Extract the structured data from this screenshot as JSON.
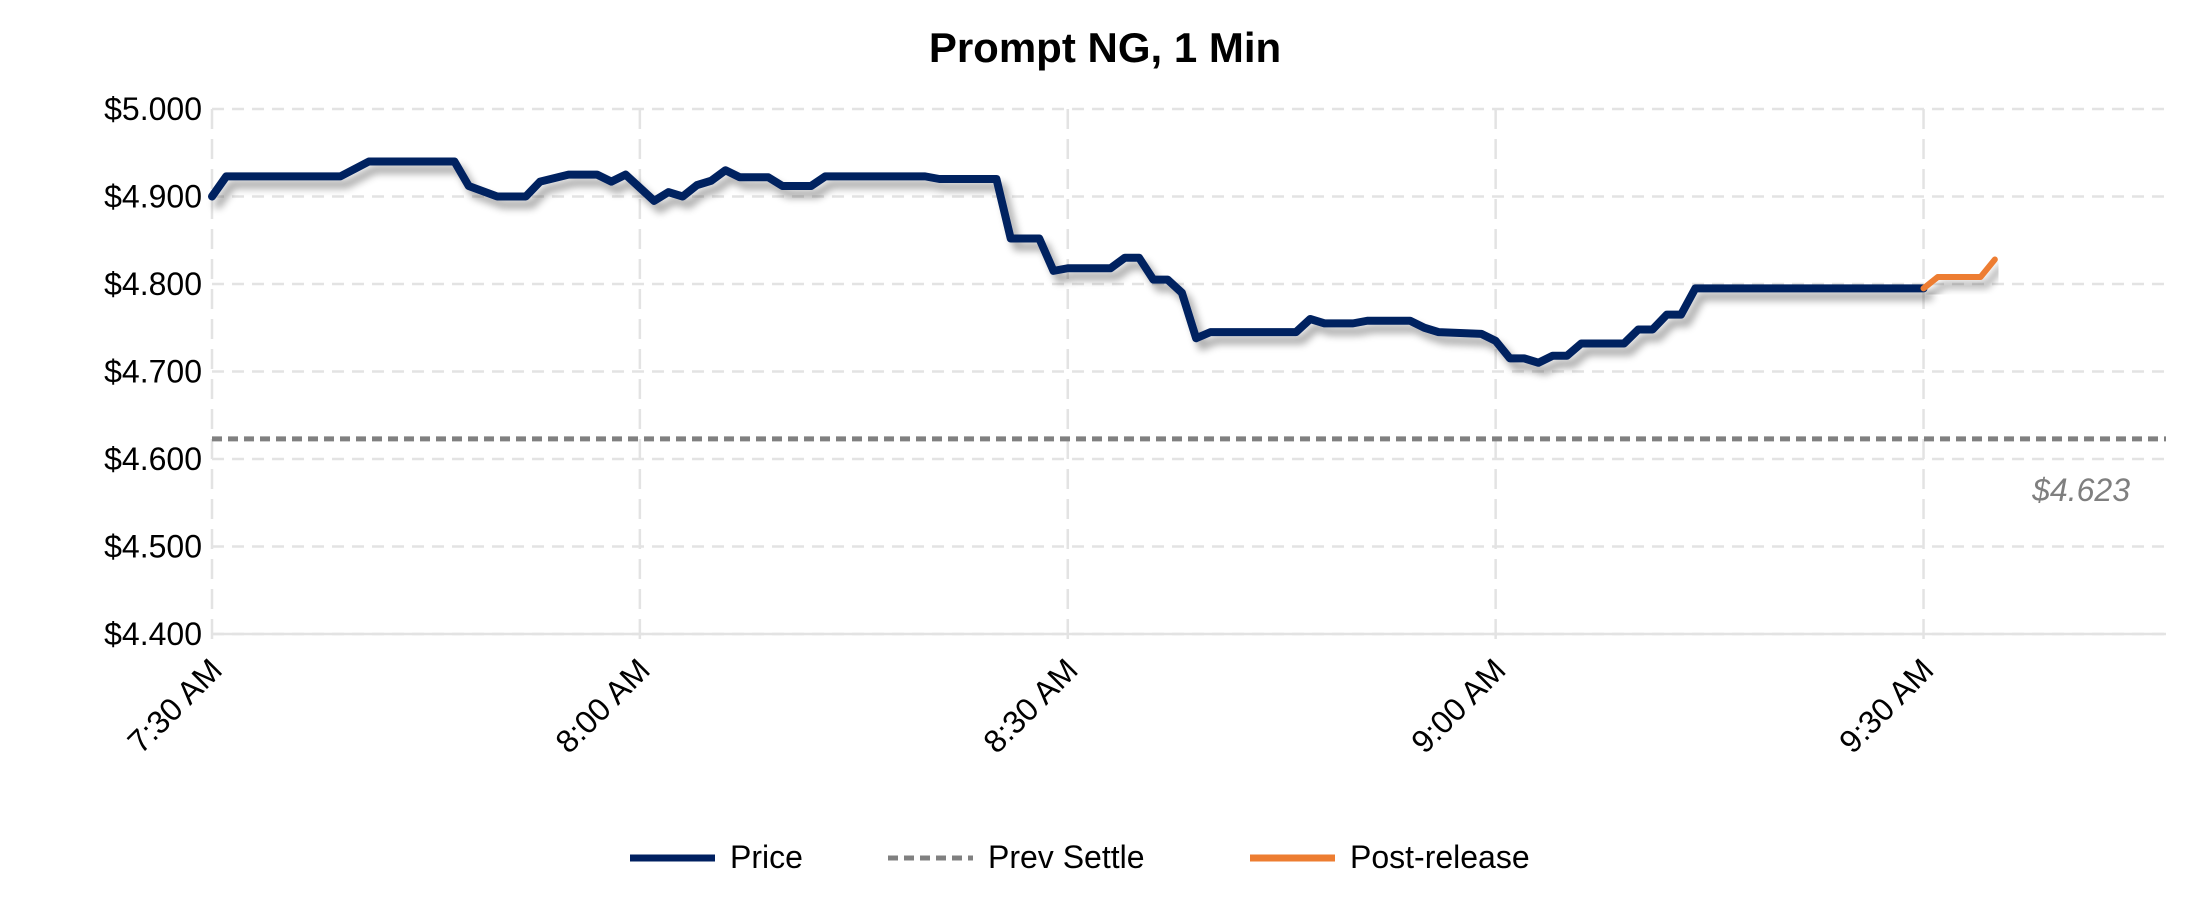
{
  "chart_data": {
    "type": "line",
    "title": "Prompt NG, 1 Min",
    "xlabel": "",
    "ylabel": "",
    "ylim": [
      4.4,
      5.0
    ],
    "yticks": [
      "$5.000",
      "$4.900",
      "$4.800",
      "$4.700",
      "$4.600",
      "$4.500",
      "$4.400"
    ],
    "ytick_values": [
      5.0,
      4.9,
      4.8,
      4.7,
      4.6,
      4.5,
      4.4
    ],
    "xlim": [
      "7:30",
      "9:47"
    ],
    "xticks": [
      "7:30 AM",
      "8:00 AM",
      "8:30 AM",
      "9:00 AM",
      "9:30 AM"
    ],
    "xtick_values": [
      "7:30",
      "8:00",
      "8:30",
      "9:00",
      "9:30"
    ],
    "grid": true,
    "legend_position": "bottom",
    "series": [
      {
        "name": "Price",
        "color": "#002060",
        "style": "solid",
        "x": [
          "7:30",
          "7:31",
          "7:39",
          "7:41",
          "7:47",
          "7:48",
          "7:50",
          "7:52",
          "7:53",
          "7:55",
          "7:57",
          "7:58",
          "7:59",
          "8:00",
          "8:01",
          "8:02",
          "8:03",
          "8:04",
          "8:05",
          "8:06",
          "8:07",
          "8:09",
          "8:10",
          "8:12",
          "8:13",
          "8:20",
          "8:21",
          "8:25",
          "8:26",
          "8:28",
          "8:29",
          "8:30",
          "8:33",
          "8:34",
          "8:35",
          "8:36",
          "8:37",
          "8:38",
          "8:39",
          "8:40",
          "8:46",
          "8:47",
          "8:48",
          "8:50",
          "8:51",
          "8:54",
          "8:55",
          "8:56",
          "8:59",
          "9:00",
          "9:01",
          "9:02",
          "9:03",
          "9:04",
          "9:05",
          "9:06",
          "9:09",
          "9:10",
          "9:11",
          "9:12",
          "9:13",
          "9:14",
          "9:30"
        ],
        "y": [
          4.9,
          4.923,
          4.923,
          4.94,
          4.94,
          4.912,
          4.9,
          4.9,
          4.917,
          4.925,
          4.925,
          4.917,
          4.925,
          4.91,
          4.895,
          4.905,
          4.9,
          4.913,
          4.918,
          4.93,
          4.922,
          4.922,
          4.912,
          4.912,
          4.923,
          4.923,
          4.92,
          4.92,
          4.852,
          4.852,
          4.815,
          4.818,
          4.818,
          4.83,
          4.83,
          4.805,
          4.805,
          4.79,
          4.738,
          4.745,
          4.745,
          4.76,
          4.755,
          4.755,
          4.758,
          4.758,
          4.75,
          4.745,
          4.743,
          4.735,
          4.715,
          4.715,
          4.71,
          4.718,
          4.718,
          4.732,
          4.732,
          4.748,
          4.748,
          4.765,
          4.765,
          4.795,
          4.795
        ]
      },
      {
        "name": "Prev Settle",
        "color": "#808080",
        "style": "dashed",
        "value": 4.623,
        "label": "$4.623"
      },
      {
        "name": "Post-release",
        "color": "#ED7D31",
        "style": "solid",
        "x": [
          "9:30",
          "9:31",
          "9:34",
          "9:35"
        ],
        "y": [
          4.795,
          4.808,
          4.808,
          4.828
        ]
      }
    ]
  }
}
